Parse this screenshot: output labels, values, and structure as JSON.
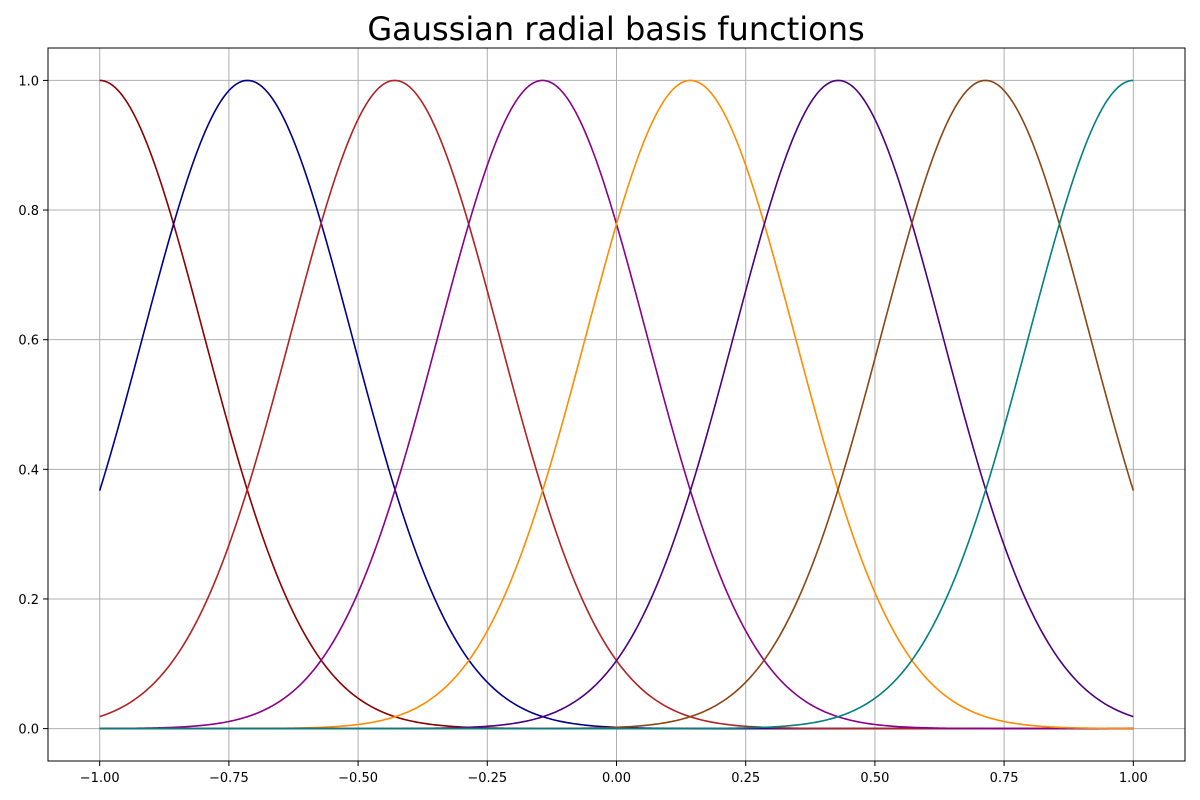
{
  "chart_data": {
    "type": "line",
    "title": "Gaussian radial basis functions",
    "xlabel": "",
    "ylabel": "",
    "xlim": [
      -1.1,
      1.1
    ],
    "ylim": [
      -0.05,
      1.05
    ],
    "grid": true,
    "x_ticks": [
      -1.0,
      -0.75,
      -0.5,
      -0.25,
      0.0,
      0.25,
      0.5,
      0.75,
      1.0
    ],
    "x_tick_labels": [
      "−1.00",
      "−0.75",
      "−0.50",
      "−0.25",
      "0.00",
      "0.25",
      "0.50",
      "0.75",
      "1.00"
    ],
    "y_ticks": [
      0.0,
      0.2,
      0.4,
      0.6,
      0.8,
      1.0
    ],
    "y_tick_labels": [
      "0.0",
      "0.2",
      "0.4",
      "0.6",
      "0.8",
      "1.0"
    ],
    "x_domain": [
      -1.0,
      1.0
    ],
    "function": "exp(-((x - c) / w)^2)",
    "width": 0.2857,
    "series": [
      {
        "center": -1.0,
        "color": "#8b0000"
      },
      {
        "center": -0.714,
        "color": "#00008b"
      },
      {
        "center": -0.429,
        "color": "#b22222"
      },
      {
        "center": -0.143,
        "color": "#8b008b"
      },
      {
        "center": 0.143,
        "color": "#ff8c00"
      },
      {
        "center": 0.429,
        "color": "#4b0082"
      },
      {
        "center": 0.714,
        "color": "#8b4513"
      },
      {
        "center": 1.0,
        "color": "#008080"
      }
    ]
  }
}
